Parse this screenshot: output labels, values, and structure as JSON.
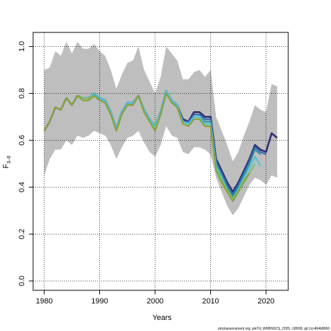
{
  "chart_data": {
    "type": "line",
    "xlabel": "Years",
    "ylabel_main": "F",
    "ylabel_sub": "3–6",
    "footer": "stockassessment.org, pleTd_WKBNSCS_2025, r18999, git:1cc464b8066",
    "xlim": [
      1978,
      2024
    ],
    "ylim": [
      -0.04,
      1.06
    ],
    "x_ticks": [
      1980,
      1990,
      2000,
      2010,
      2020
    ],
    "y_ticks": [
      0.0,
      0.2,
      0.4,
      0.6,
      0.8,
      1.0
    ],
    "y_tick_labels": [
      "0.0",
      "0.2",
      "0.4",
      "0.6",
      "0.8",
      "1.0"
    ],
    "grid": true,
    "band": {
      "x": [
        1980,
        1981,
        1982,
        1983,
        1984,
        1985,
        1986,
        1987,
        1988,
        1989,
        1990,
        1991,
        1992,
        1993,
        1994,
        1995,
        1996,
        1997,
        1998,
        1999,
        2000,
        2001,
        2002,
        2003,
        2004,
        2005,
        2006,
        2007,
        2008,
        2009,
        2010,
        2011,
        2012,
        2013,
        2014,
        2015,
        2016,
        2017,
        2018,
        2019,
        2020,
        2021,
        2022
      ],
      "upper": [
        0.9,
        0.91,
        0.98,
        0.96,
        1.02,
        0.97,
        1.02,
        0.99,
        0.99,
        1.01,
        0.98,
        0.96,
        0.9,
        0.82,
        0.88,
        0.93,
        0.94,
        1.0,
        0.9,
        0.85,
        0.8,
        0.87,
        1.0,
        0.97,
        0.94,
        0.86,
        0.86,
        0.89,
        0.9,
        0.87,
        0.9,
        0.7,
        0.64,
        0.58,
        0.51,
        0.55,
        0.62,
        0.68,
        0.75,
        0.73,
        0.72,
        0.84,
        0.83
      ],
      "lower": [
        0.45,
        0.52,
        0.56,
        0.56,
        0.6,
        0.58,
        0.62,
        0.61,
        0.62,
        0.64,
        0.63,
        0.62,
        0.58,
        0.52,
        0.57,
        0.61,
        0.62,
        0.64,
        0.59,
        0.55,
        0.53,
        0.58,
        0.66,
        0.62,
        0.61,
        0.55,
        0.54,
        0.57,
        0.57,
        0.56,
        0.54,
        0.44,
        0.38,
        0.32,
        0.28,
        0.31,
        0.36,
        0.41,
        0.44,
        0.43,
        0.41,
        0.45,
        0.44
      ]
    },
    "series": [
      {
        "color": "#2b2f6e",
        "width": 2.6,
        "x": [
          1980,
          1981,
          1982,
          1983,
          1984,
          1985,
          1986,
          1987,
          1988,
          1989,
          1990,
          1991,
          1992,
          1993,
          1994,
          1995,
          1996,
          1997,
          1998,
          1999,
          2000,
          2001,
          2002,
          2003,
          2004,
          2005,
          2006,
          2007,
          2008,
          2009,
          2010,
          2011,
          2012,
          2013,
          2014,
          2015,
          2016,
          2017,
          2018,
          2019,
          2020,
          2021,
          2022
        ],
        "y": [
          0.64,
          0.68,
          0.74,
          0.73,
          0.78,
          0.75,
          0.79,
          0.78,
          0.78,
          0.8,
          0.78,
          0.77,
          0.72,
          0.65,
          0.72,
          0.76,
          0.76,
          0.79,
          0.73,
          0.69,
          0.66,
          0.72,
          0.81,
          0.77,
          0.75,
          0.69,
          0.68,
          0.72,
          0.72,
          0.7,
          0.7,
          0.52,
          0.47,
          0.42,
          0.38,
          0.42,
          0.47,
          0.52,
          0.58,
          0.56,
          0.55,
          0.63,
          0.61
        ]
      },
      {
        "color": "#3a64b3",
        "width": 2.2,
        "x": [
          1980,
          1981,
          1982,
          1983,
          1984,
          1985,
          1986,
          1987,
          1988,
          1989,
          1990,
          1991,
          1992,
          1993,
          1994,
          1995,
          1996,
          1997,
          1998,
          1999,
          2000,
          2001,
          2002,
          2003,
          2004,
          2005,
          2006,
          2007,
          2008,
          2009,
          2010,
          2011,
          2012,
          2013,
          2014,
          2015,
          2016,
          2017,
          2018,
          2019,
          2020
        ],
        "y": [
          0.64,
          0.68,
          0.74,
          0.73,
          0.78,
          0.75,
          0.79,
          0.78,
          0.78,
          0.8,
          0.78,
          0.77,
          0.72,
          0.65,
          0.72,
          0.76,
          0.76,
          0.79,
          0.73,
          0.69,
          0.66,
          0.72,
          0.81,
          0.77,
          0.75,
          0.68,
          0.68,
          0.71,
          0.71,
          0.69,
          0.69,
          0.51,
          0.46,
          0.41,
          0.37,
          0.41,
          0.46,
          0.51,
          0.57,
          0.55,
          0.54
        ]
      },
      {
        "color": "#2f8f9a",
        "width": 2.2,
        "x": [
          1980,
          1981,
          1982,
          1983,
          1984,
          1985,
          1986,
          1987,
          1988,
          1989,
          1990,
          1991,
          1992,
          1993,
          1994,
          1995,
          1996,
          1997,
          1998,
          1999,
          2000,
          2001,
          2002,
          2003,
          2004,
          2005,
          2006,
          2007,
          2008,
          2009,
          2010,
          2011,
          2012,
          2013,
          2014,
          2015,
          2016,
          2017,
          2018,
          2019
        ],
        "y": [
          0.64,
          0.68,
          0.74,
          0.73,
          0.78,
          0.75,
          0.79,
          0.78,
          0.78,
          0.8,
          0.78,
          0.77,
          0.72,
          0.65,
          0.72,
          0.76,
          0.76,
          0.79,
          0.73,
          0.69,
          0.66,
          0.72,
          0.81,
          0.77,
          0.75,
          0.68,
          0.67,
          0.7,
          0.7,
          0.68,
          0.68,
          0.5,
          0.45,
          0.4,
          0.36,
          0.4,
          0.45,
          0.5,
          0.56,
          0.54
        ]
      },
      {
        "color": "#4fc3d9",
        "width": 2.2,
        "x": [
          1980,
          1981,
          1982,
          1983,
          1984,
          1985,
          1986,
          1987,
          1988,
          1989,
          1990,
          1991,
          1992,
          1993,
          1994,
          1995,
          1996,
          1997,
          1998,
          1999,
          2000,
          2001,
          2002,
          2003,
          2004,
          2005,
          2006,
          2007,
          2008,
          2009,
          2010,
          2011,
          2012,
          2013,
          2014,
          2015,
          2016,
          2017,
          2018,
          2019
        ],
        "y": [
          0.64,
          0.68,
          0.74,
          0.73,
          0.78,
          0.75,
          0.79,
          0.78,
          0.78,
          0.8,
          0.78,
          0.77,
          0.72,
          0.65,
          0.72,
          0.76,
          0.76,
          0.79,
          0.73,
          0.69,
          0.66,
          0.72,
          0.81,
          0.77,
          0.75,
          0.68,
          0.67,
          0.7,
          0.7,
          0.67,
          0.67,
          0.49,
          0.44,
          0.39,
          0.35,
          0.39,
          0.44,
          0.48,
          0.53,
          0.49
        ]
      },
      {
        "color": "#7cc06a",
        "width": 2.2,
        "x": [
          1980,
          1981,
          1982,
          1983,
          1984,
          1985,
          1986,
          1987,
          1988,
          1989,
          1990,
          1991,
          1992,
          1993,
          1994,
          1995,
          1996,
          1997,
          1998,
          1999,
          2000,
          2001,
          2002,
          2003,
          2004,
          2005,
          2006,
          2007,
          2008,
          2009,
          2010,
          2011,
          2012,
          2013,
          2014,
          2015,
          2016,
          2017,
          2018
        ],
        "y": [
          0.64,
          0.68,
          0.74,
          0.73,
          0.78,
          0.75,
          0.79,
          0.78,
          0.78,
          0.79,
          0.77,
          0.76,
          0.71,
          0.64,
          0.71,
          0.75,
          0.75,
          0.79,
          0.72,
          0.68,
          0.65,
          0.71,
          0.8,
          0.76,
          0.74,
          0.67,
          0.66,
          0.69,
          0.69,
          0.66,
          0.66,
          0.48,
          0.43,
          0.39,
          0.35,
          0.38,
          0.43,
          0.46,
          0.5
        ]
      },
      {
        "color": "#8aa13a",
        "width": 2.2,
        "x": [
          1980,
          1981,
          1982,
          1983,
          1984,
          1985,
          1986,
          1987,
          1988,
          1989,
          1990,
          1991,
          1992,
          1993,
          1994,
          1995,
          1996,
          1997,
          1998,
          1999,
          2000,
          2001,
          2002,
          2003,
          2004,
          2005,
          2006,
          2007,
          2008,
          2009,
          2010,
          2011,
          2012,
          2013,
          2014,
          2015,
          2016,
          2017
        ],
        "y": [
          0.64,
          0.68,
          0.74,
          0.73,
          0.78,
          0.75,
          0.79,
          0.77,
          0.77,
          0.79,
          0.77,
          0.76,
          0.71,
          0.64,
          0.71,
          0.75,
          0.75,
          0.79,
          0.72,
          0.68,
          0.64,
          0.71,
          0.8,
          0.76,
          0.74,
          0.67,
          0.66,
          0.69,
          0.69,
          0.66,
          0.66,
          0.47,
          0.42,
          0.38,
          0.34,
          0.38,
          0.42,
          0.46
        ]
      }
    ]
  }
}
